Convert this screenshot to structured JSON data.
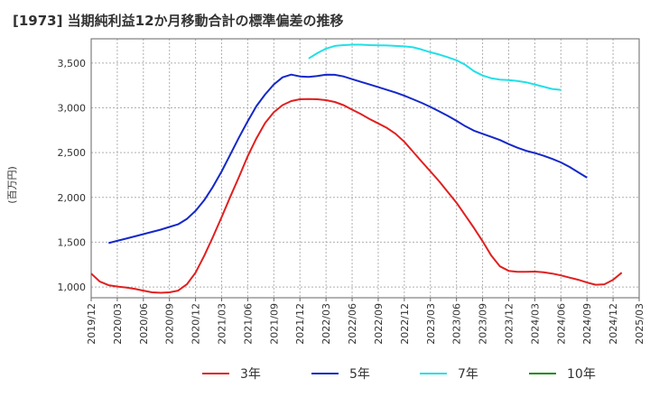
{
  "chart_data": {
    "type": "line",
    "title": "[1973]  当期純利益12か月移動合計の標準偏差の推移",
    "xlabel": "",
    "ylabel": "(百万円)",
    "x_ticks": [
      "2019/12",
      "2020/03",
      "2020/06",
      "2020/09",
      "2020/12",
      "2021/03",
      "2021/06",
      "2021/09",
      "2021/12",
      "2022/03",
      "2022/06",
      "2022/09",
      "2022/12",
      "2023/03",
      "2023/06",
      "2023/09",
      "2023/12",
      "2024/03",
      "2024/06",
      "2024/09",
      "2024/12",
      "2025/03"
    ],
    "y_ticks": [
      "1,000",
      "1,500",
      "2,000",
      "2,500",
      "3,000",
      "3,500"
    ],
    "ylim": [
      880,
      3770
    ],
    "grid": true,
    "legend_position": "bottom",
    "series": [
      {
        "name": "3年",
        "color": "#e02020",
        "start": "2019/12",
        "values": [
          1150,
          1060,
          1020,
          1005,
          995,
          980,
          960,
          940,
          935,
          940,
          960,
          1030,
          1160,
          1350,
          1560,
          1780,
          2010,
          2230,
          2460,
          2660,
          2830,
          2950,
          3030,
          3075,
          3095,
          3098,
          3095,
          3085,
          3065,
          3030,
          2980,
          2930,
          2875,
          2825,
          2775,
          2710,
          2620,
          2510,
          2400,
          2290,
          2180,
          2060,
          1940,
          1800,
          1660,
          1510,
          1350,
          1230,
          1180,
          1170,
          1170,
          1172,
          1165,
          1150,
          1130,
          1105,
          1080,
          1050,
          1025,
          1030,
          1080,
          1160
        ]
      },
      {
        "name": "5年",
        "color": "#1428c8",
        "start": "2020/02",
        "values": [
          1490,
          1515,
          1540,
          1565,
          1590,
          1615,
          1640,
          1670,
          1700,
          1760,
          1850,
          1970,
          2120,
          2290,
          2480,
          2670,
          2850,
          3020,
          3150,
          3260,
          3340,
          3370,
          3350,
          3345,
          3355,
          3370,
          3368,
          3350,
          3320,
          3290,
          3260,
          3230,
          3200,
          3170,
          3135,
          3095,
          3055,
          3010,
          2960,
          2910,
          2855,
          2795,
          2745,
          2710,
          2675,
          2640,
          2595,
          2555,
          2520,
          2495,
          2465,
          2430,
          2390,
          2340,
          2280,
          2220
        ]
      },
      {
        "name": "7年",
        "color": "#20e0e8",
        "start": "2022/01",
        "values": [
          3550,
          3610,
          3660,
          3690,
          3700,
          3705,
          3705,
          3700,
          3698,
          3695,
          3690,
          3685,
          3675,
          3650,
          3620,
          3595,
          3565,
          3530,
          3480,
          3410,
          3360,
          3330,
          3315,
          3310,
          3300,
          3285,
          3260,
          3235,
          3210,
          3200
        ]
      },
      {
        "name": "10年",
        "color": "#1a8a1a",
        "start": "2019/12",
        "values": []
      }
    ]
  }
}
